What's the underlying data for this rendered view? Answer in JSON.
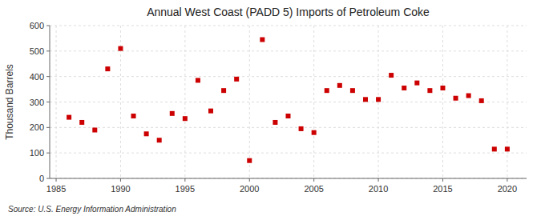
{
  "chart_data": {
    "type": "scatter",
    "title": "Annual West Coast (PADD 5) Imports of Petroleum Coke",
    "y_label": "Thousand Barrels",
    "source": "Source: U.S. Energy Information Administration",
    "x": [
      1986,
      1987,
      1988,
      1989,
      1990,
      1991,
      1992,
      1993,
      1994,
      1995,
      1996,
      1997,
      1998,
      1999,
      2000,
      2001,
      2002,
      2003,
      2004,
      2005,
      2006,
      2007,
      2008,
      2009,
      2010,
      2011,
      2012,
      2013,
      2014,
      2015,
      2016,
      2017,
      2018,
      2019,
      2020
    ],
    "values": [
      240,
      220,
      190,
      430,
      510,
      245,
      175,
      150,
      255,
      235,
      385,
      265,
      345,
      390,
      70,
      545,
      220,
      245,
      195,
      180,
      345,
      365,
      345,
      310,
      310,
      405,
      355,
      375,
      345,
      355,
      315,
      325,
      305,
      115,
      115
    ],
    "color": "#cc0000",
    "marker": "square",
    "xlim": [
      1984.5,
      2021.5
    ],
    "ylim": [
      0,
      600
    ],
    "xticks": [
      1985,
      1990,
      1995,
      2000,
      2005,
      2010,
      2015,
      2020
    ],
    "yticks": [
      0,
      100,
      200,
      300,
      400,
      500,
      600
    ],
    "grid": true
  }
}
